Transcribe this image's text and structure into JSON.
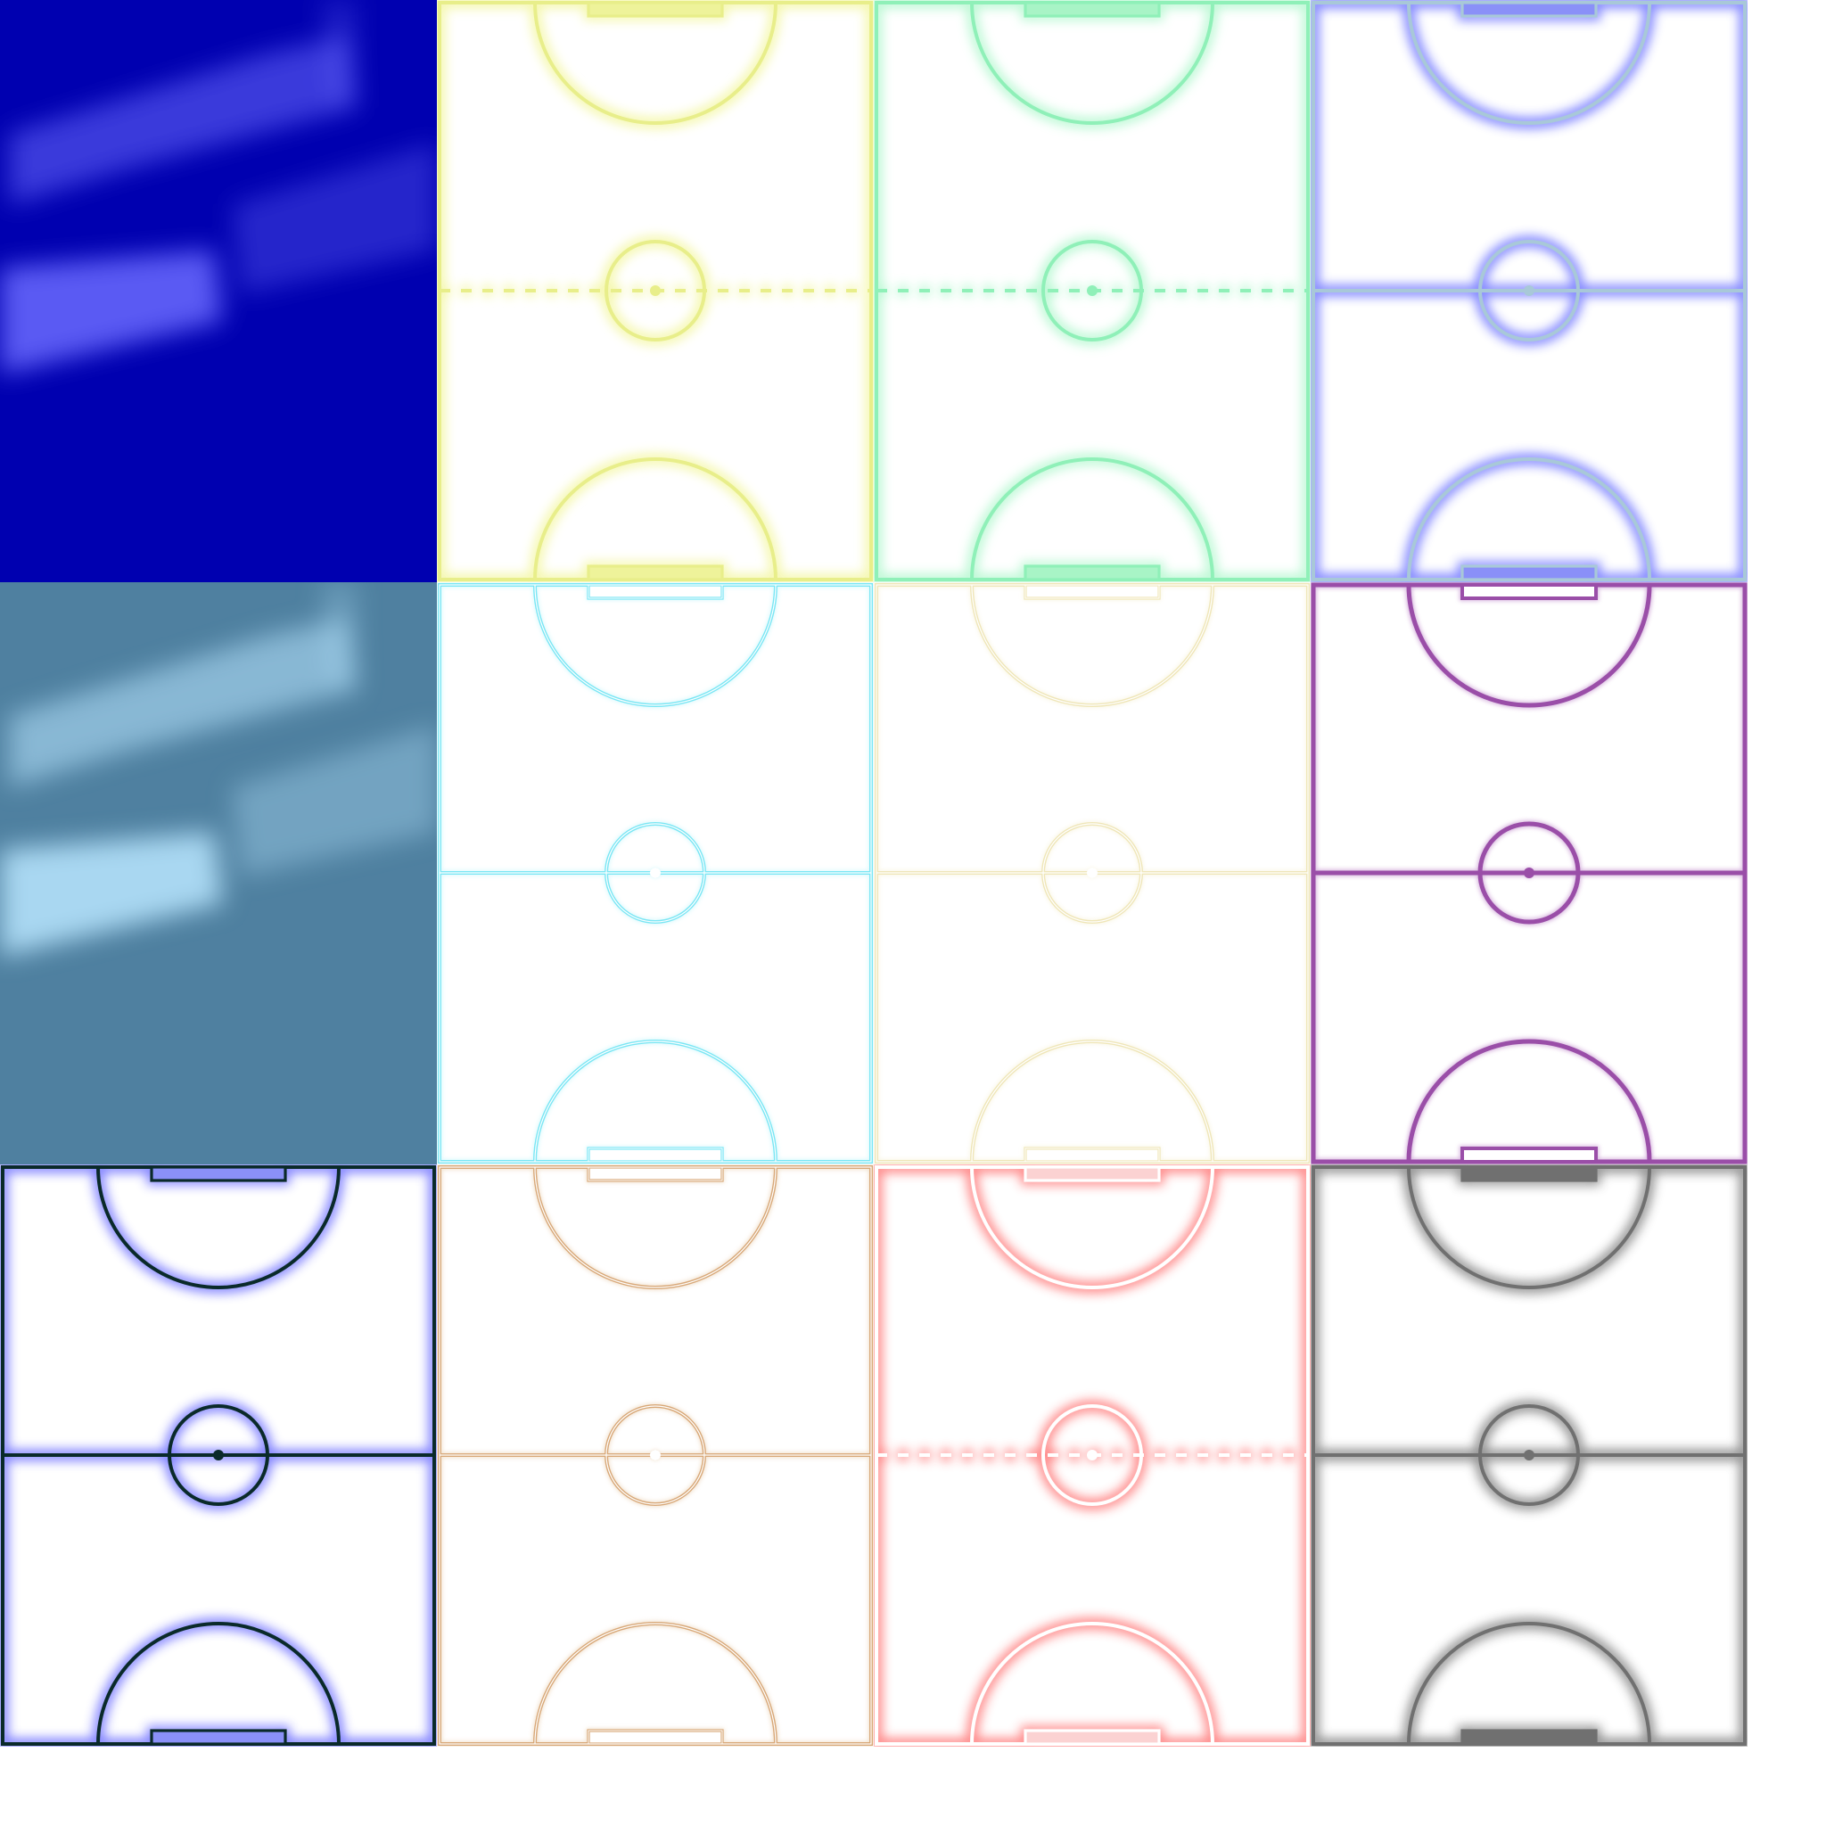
{
  "sheet": {
    "background": "#ffffff",
    "tiles": [
      {
        "kind": "background",
        "name": "blue-background-swatch",
        "base": "#0000b0",
        "light": "#6a6aff"
      },
      {
        "kind": "court",
        "name": "court-yellow-glow",
        "line": "#e8ee8a",
        "glow": "#f4f7a8",
        "goal_fill": "#eef39a",
        "midline": "dashed",
        "style": "glow"
      },
      {
        "kind": "court",
        "name": "court-mint-glow",
        "line": "#8ff0b8",
        "glow": "#b8f8d2",
        "goal_fill": "#a8f4c6",
        "midline": "dashed",
        "style": "glow"
      },
      {
        "kind": "court",
        "name": "court-periwinkle-glow",
        "line": "#a8c8d8",
        "glow": "#7a80ff",
        "goal_fill": "#8a90f8",
        "midline": "solid",
        "style": "glow"
      },
      {
        "kind": "background",
        "name": "steel-blue-background-swatch",
        "base": "#4f80a0",
        "light": "#b8e6ff"
      },
      {
        "kind": "court",
        "name": "court-cyan-outline",
        "line": "#7ae6f4",
        "glow": "#c8f6fb",
        "goal_fill": "#ffffff",
        "midline": "solid",
        "style": "double"
      },
      {
        "kind": "court",
        "name": "court-cream-outline",
        "line": "#efe6b8",
        "glow": "#f7f2d8",
        "goal_fill": "#ffffff",
        "midline": "solid",
        "style": "double"
      },
      {
        "kind": "court",
        "name": "court-purple-solid",
        "line": "#9a4ea8",
        "glow": "#c08acb",
        "goal_fill": "#ffffff",
        "midline": "solid",
        "style": "solid"
      },
      {
        "kind": "court",
        "name": "court-black-blue-glow",
        "line": "#0a2a2a",
        "glow": "#7a7cff",
        "goal_fill": "#8a90f8",
        "midline": "solid",
        "style": "glow"
      },
      {
        "kind": "court",
        "name": "court-tan-outline",
        "line": "#d8a878",
        "glow": "#ead0b2",
        "goal_fill": "#ffffff",
        "midline": "solid",
        "style": "double"
      },
      {
        "kind": "court",
        "name": "court-white-red-glow",
        "line": "#ffffff",
        "glow": "#ff8080",
        "goal_fill": "#fbd2d2",
        "midline": "dashed",
        "style": "glow"
      },
      {
        "kind": "court",
        "name": "court-gray-blur",
        "line": "#707070",
        "glow": "#8a8a8a",
        "goal_fill": "#707070",
        "midline": "solid",
        "style": "glow"
      }
    ]
  }
}
